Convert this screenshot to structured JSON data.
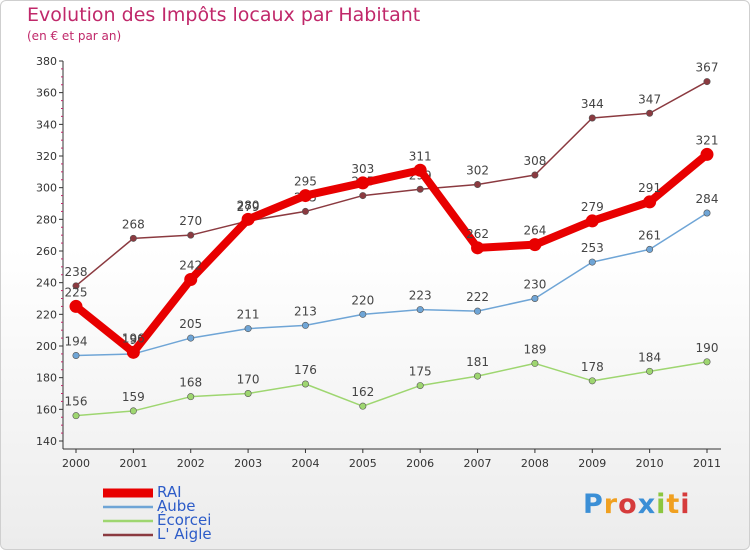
{
  "chart_data": {
    "type": "line",
    "title": "Evolution des Impôts locaux par Habitant",
    "subtitle": "(en € et par an)",
    "x": [
      "2000",
      "2001",
      "2002",
      "2003",
      "2004",
      "2005",
      "2006",
      "2007",
      "2008",
      "2009",
      "2010",
      "2011"
    ],
    "ylim": [
      140,
      380
    ],
    "yticks": [
      140,
      160,
      180,
      200,
      220,
      240,
      260,
      280,
      300,
      320,
      340,
      360,
      380
    ],
    "grid": false,
    "legend_position": "bottom-left",
    "series": [
      {
        "name": "RAI",
        "color": "#e80000",
        "values": [
          225,
          196,
          242,
          280,
          295,
          303,
          311,
          262,
          264,
          279,
          291,
          321
        ]
      },
      {
        "name": "Aube",
        "color": "#6fa5d6",
        "values": [
          194,
          195,
          205,
          211,
          213,
          220,
          223,
          222,
          230,
          253,
          261,
          284
        ]
      },
      {
        "name": "Écorcei",
        "color": "#9ed670",
        "values": [
          156,
          159,
          168,
          170,
          176,
          162,
          175,
          181,
          189,
          178,
          184,
          190
        ]
      },
      {
        "name": "L' Aigle",
        "color": "#8b3a40",
        "values": [
          238,
          268,
          270,
          279,
          285,
          295,
          299,
          302,
          308,
          344,
          347,
          367
        ]
      }
    ]
  },
  "logo": {
    "letters": [
      {
        "ch": "P",
        "color": "#3b8fd6"
      },
      {
        "ch": "r",
        "color": "#f0a020"
      },
      {
        "ch": "o",
        "color": "#d63b3b"
      },
      {
        "ch": "x",
        "color": "#3b8fd6"
      },
      {
        "ch": "i",
        "color": "#8cc63f"
      },
      {
        "ch": "t",
        "color": "#f0a020"
      },
      {
        "ch": "i",
        "color": "#d63b3b"
      }
    ]
  }
}
